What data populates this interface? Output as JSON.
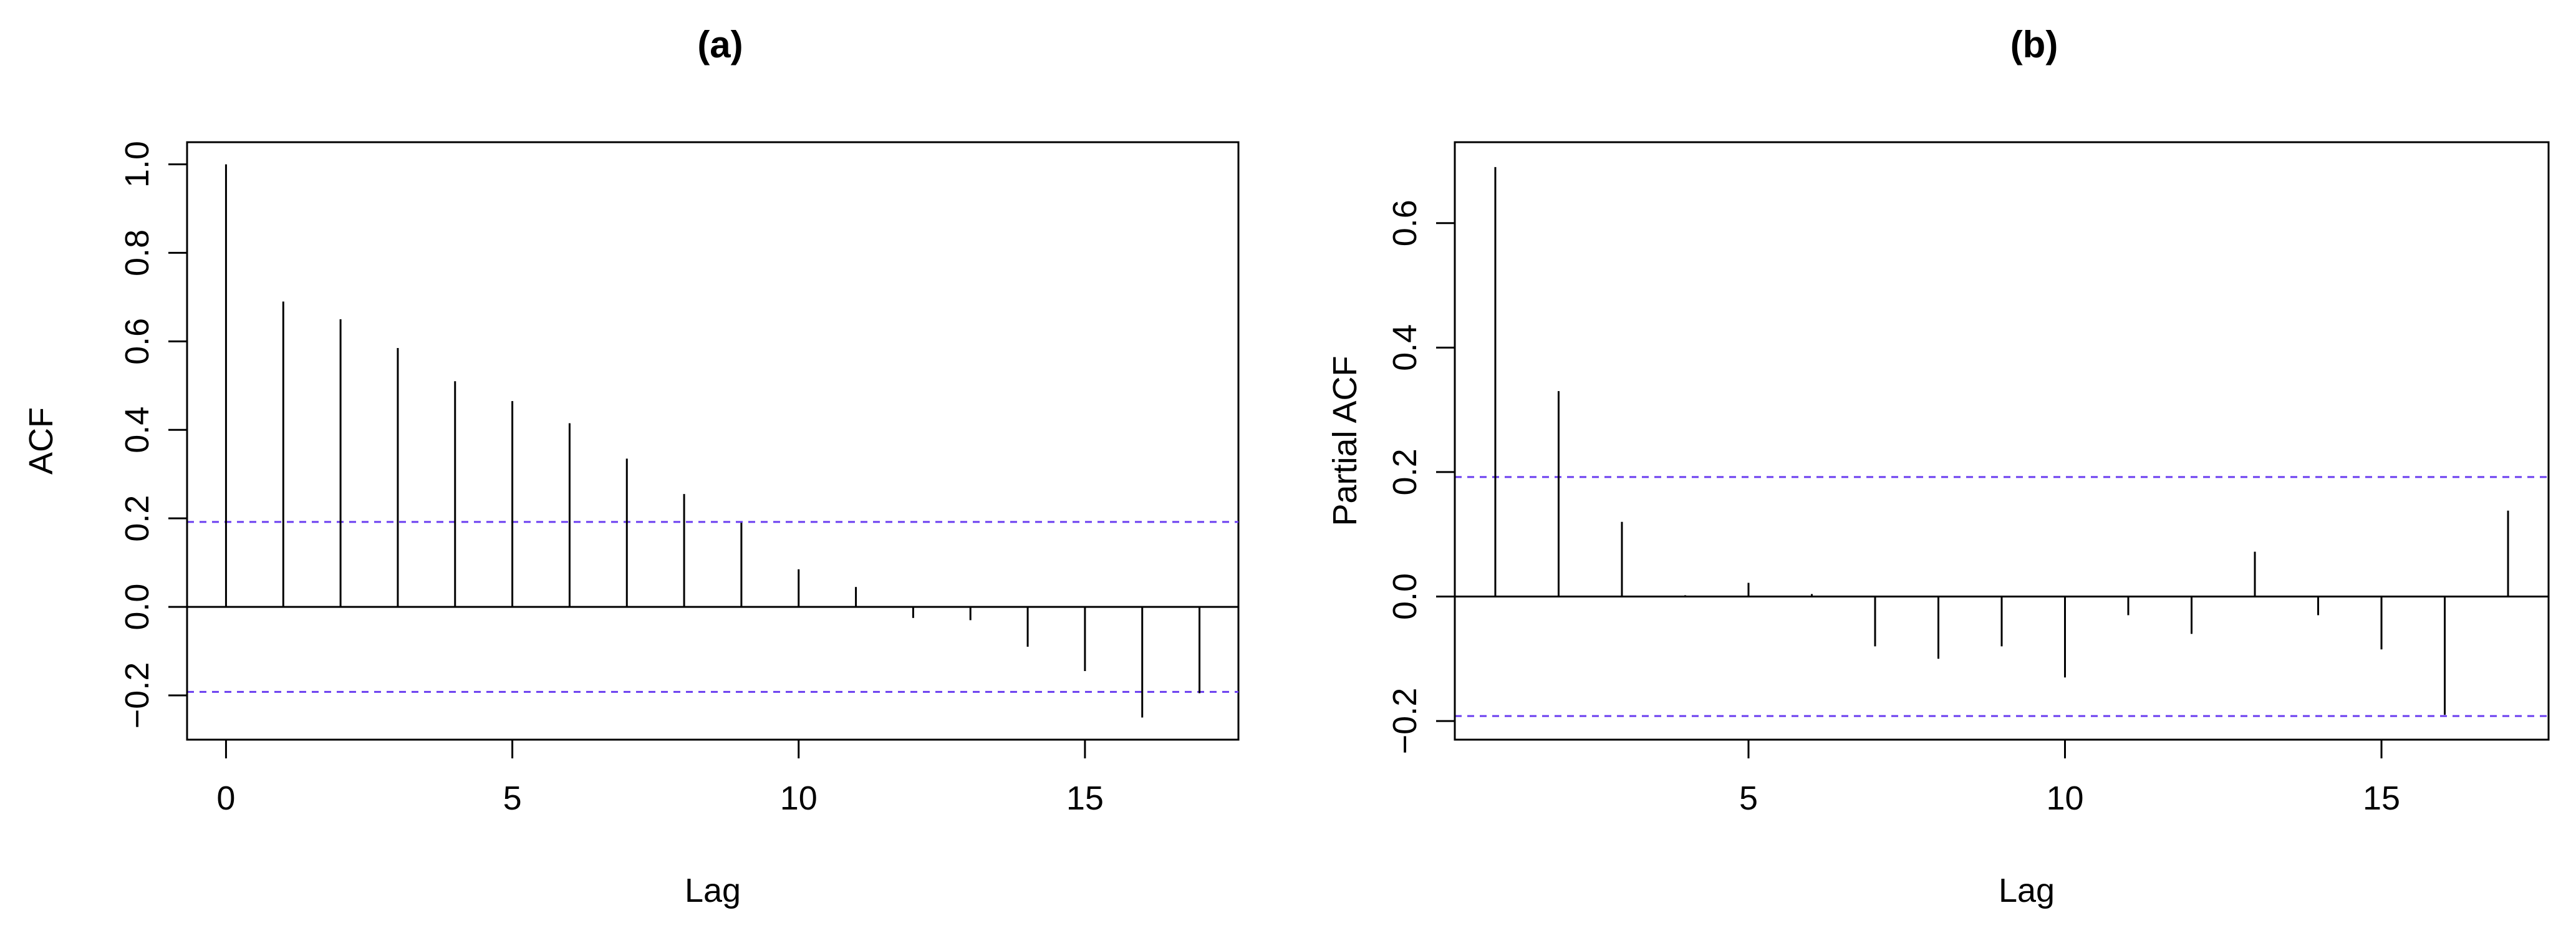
{
  "chart_data": [
    {
      "type": "acf",
      "title": "(a)",
      "xlabel": "Lag",
      "ylabel": "ACF",
      "xlim": [
        -0.68,
        17.68
      ],
      "ylim": [
        -0.3,
        1.05
      ],
      "xticks": [
        0,
        5,
        10,
        15
      ],
      "xtick_labels": [
        "0",
        "5",
        "10",
        "15"
      ],
      "yticks": [
        -0.2,
        0.0,
        0.2,
        0.4,
        0.6,
        0.8,
        1.0
      ],
      "ytick_labels": [
        "−0.2",
        "0.0",
        "0.2",
        "0.4",
        "0.6",
        "0.8",
        "1.0"
      ],
      "lags": [
        0,
        1,
        2,
        3,
        4,
        5,
        6,
        7,
        8,
        9,
        10,
        11,
        12,
        13,
        14,
        15,
        16,
        17
      ],
      "values": [
        1.0,
        0.69,
        0.65,
        0.585,
        0.51,
        0.465,
        0.415,
        0.335,
        0.255,
        0.19,
        0.085,
        0.045,
        -0.025,
        -0.03,
        -0.09,
        -0.145,
        -0.25,
        -0.195
      ],
      "conf_limit": 0.192,
      "conf_color": "#6a3df0",
      "line_color": "#000000"
    },
    {
      "type": "pacf",
      "title": "(b)",
      "xlabel": "Lag",
      "ylabel": "Partial ACF",
      "xlim": [
        0.36,
        17.64
      ],
      "ylim": [
        -0.23,
        0.73
      ],
      "xticks": [
        5,
        10,
        15
      ],
      "xtick_labels": [
        "5",
        "10",
        "15"
      ],
      "yticks": [
        -0.2,
        0.0,
        0.2,
        0.4,
        0.6
      ],
      "ytick_labels": [
        "−0.2",
        "0.0",
        "0.2",
        "0.4",
        "0.6"
      ],
      "lags": [
        1,
        2,
        3,
        4,
        5,
        6,
        7,
        8,
        9,
        10,
        11,
        12,
        13,
        14,
        15,
        16,
        17
      ],
      "values": [
        0.69,
        0.33,
        0.12,
        0.002,
        0.022,
        0.004,
        -0.08,
        -0.1,
        -0.08,
        -0.13,
        -0.03,
        -0.06,
        0.072,
        -0.03,
        -0.085,
        -0.19,
        0.138
      ],
      "conf_limit": 0.192,
      "conf_color": "#6a3df0",
      "line_color": "#000000"
    }
  ]
}
